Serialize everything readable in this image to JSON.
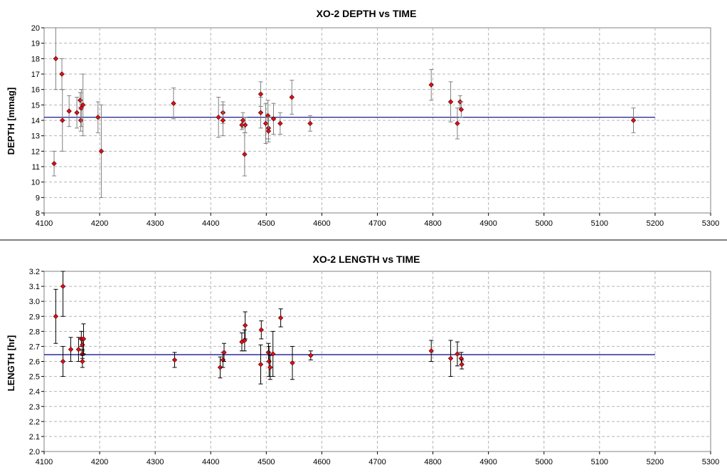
{
  "chart_data": [
    {
      "type": "scatter",
      "title": "XO-2 DEPTH vs TIME",
      "xlabel": "",
      "ylabel": "DEPTH [mmag]",
      "xlim": [
        4100,
        5300
      ],
      "ylim": [
        8,
        20
      ],
      "x_ticks": [
        4100,
        4200,
        4300,
        4400,
        4500,
        4600,
        4700,
        4800,
        4900,
        5000,
        5100,
        5200,
        5300
      ],
      "y_ticks": [
        8,
        9,
        10,
        11,
        12,
        13,
        14,
        15,
        16,
        17,
        18,
        19,
        20
      ],
      "grid": true,
      "error_bar_color": "#808080",
      "marker_color": "#e0101a",
      "reference_line": {
        "y": 14.2,
        "x_range": [
          4100,
          5200
        ],
        "color": "#000080"
      },
      "points": [
        {
          "x": 4118,
          "y": 11.2,
          "err": 0.8
        },
        {
          "x": 4121,
          "y": 18.0,
          "err": 2.0
        },
        {
          "x": 4132,
          "y": 17.0,
          "err": 1.0
        },
        {
          "x": 4133,
          "y": 14.0,
          "err": 2.0
        },
        {
          "x": 4145,
          "y": 14.6,
          "err": 1.0
        },
        {
          "x": 4159,
          "y": 14.5,
          "err": 1.0
        },
        {
          "x": 4165,
          "y": 15.3,
          "err": 0.5
        },
        {
          "x": 4166,
          "y": 14.0,
          "err": 0.7
        },
        {
          "x": 4167,
          "y": 14.8,
          "err": 1.2
        },
        {
          "x": 4170,
          "y": 15.0,
          "err": 2.0
        },
        {
          "x": 4197,
          "y": 14.2,
          "err": 1.0
        },
        {
          "x": 4203,
          "y": 12.0,
          "err": 3.0
        },
        {
          "x": 4333,
          "y": 15.1,
          "err": 1.0
        },
        {
          "x": 4414,
          "y": 14.2,
          "err": 1.3
        },
        {
          "x": 4422,
          "y": 14.5,
          "err": 0.7
        },
        {
          "x": 4422,
          "y": 14.0,
          "err": 1.0
        },
        {
          "x": 4456,
          "y": 13.7,
          "err": 0.3
        },
        {
          "x": 4458,
          "y": 14.0,
          "err": 0.5
        },
        {
          "x": 4461,
          "y": 11.8,
          "err": 1.4
        },
        {
          "x": 4462,
          "y": 13.7,
          "err": 0.5
        },
        {
          "x": 4490,
          "y": 15.7,
          "err": 0.8
        },
        {
          "x": 4490,
          "y": 14.5,
          "err": 1.0
        },
        {
          "x": 4499,
          "y": 13.8,
          "err": 1.3
        },
        {
          "x": 4503,
          "y": 14.3,
          "err": 1.0
        },
        {
          "x": 4504,
          "y": 13.5,
          "err": 0.7
        },
        {
          "x": 4504,
          "y": 13.3,
          "err": 0.7
        },
        {
          "x": 4513,
          "y": 14.1,
          "err": 1.0
        },
        {
          "x": 4525,
          "y": 13.8,
          "err": 0.7
        },
        {
          "x": 4546,
          "y": 15.5,
          "err": 1.1
        },
        {
          "x": 4579,
          "y": 13.8,
          "err": 0.5
        },
        {
          "x": 4797,
          "y": 16.3,
          "err": 1.0
        },
        {
          "x": 4832,
          "y": 15.2,
          "err": 1.3
        },
        {
          "x": 4844,
          "y": 13.8,
          "err": 1.0
        },
        {
          "x": 4849,
          "y": 15.2,
          "err": 0.4
        },
        {
          "x": 4851,
          "y": 14.7,
          "err": 0.5
        },
        {
          "x": 5161,
          "y": 14.0,
          "err": 0.8
        }
      ]
    },
    {
      "type": "scatter",
      "title": "XO-2 LENGTH vs TIME",
      "xlabel": "",
      "ylabel": "LENGTH [hr]",
      "xlim": [
        4100,
        5300
      ],
      "ylim": [
        2.0,
        3.2
      ],
      "x_ticks": [
        4100,
        4200,
        4300,
        4400,
        4500,
        4600,
        4700,
        4800,
        4900,
        5000,
        5100,
        5200,
        5300
      ],
      "y_ticks": [
        "2.0",
        "2.1",
        "2.2",
        "2.3",
        "2.4",
        "2.5",
        "2.6",
        "2.7",
        "2.8",
        "2.9",
        "3.0",
        "3.1",
        "3.2"
      ],
      "grid": true,
      "error_bar_color": "#000000",
      "marker_color": "#e0101a",
      "reference_line": {
        "y": 2.645,
        "x_range": [
          4100,
          5200
        ],
        "color": "#000080"
      },
      "points": [
        {
          "x": 4121,
          "y": 2.9,
          "err": 0.18
        },
        {
          "x": 4134,
          "y": 3.1,
          "err": 0.2
        },
        {
          "x": 4134,
          "y": 2.6,
          "err": 0.1
        },
        {
          "x": 4148,
          "y": 2.68,
          "err": 0.08
        },
        {
          "x": 4162,
          "y": 2.68,
          "err": 0.08
        },
        {
          "x": 4167,
          "y": 2.75,
          "err": 0.05
        },
        {
          "x": 4169,
          "y": 2.71,
          "err": 0.04
        },
        {
          "x": 4169,
          "y": 2.65,
          "err": 0.03
        },
        {
          "x": 4169,
          "y": 2.6,
          "err": 0.04
        },
        {
          "x": 4171,
          "y": 2.75,
          "err": 0.1
        },
        {
          "x": 4335,
          "y": 2.61,
          "err": 0.05
        },
        {
          "x": 4417,
          "y": 2.56,
          "err": 0.07
        },
        {
          "x": 4422,
          "y": 2.61,
          "err": 0.05
        },
        {
          "x": 4424,
          "y": 2.66,
          "err": 0.06
        },
        {
          "x": 4456,
          "y": 2.73,
          "err": 0.06
        },
        {
          "x": 4461,
          "y": 2.74,
          "err": 0.07
        },
        {
          "x": 4462,
          "y": 2.84,
          "err": 0.09
        },
        {
          "x": 4490,
          "y": 2.58,
          "err": 0.13
        },
        {
          "x": 4491,
          "y": 2.81,
          "err": 0.06
        },
        {
          "x": 4504,
          "y": 2.66,
          "err": 0.06
        },
        {
          "x": 4505,
          "y": 2.6,
          "err": 0.1
        },
        {
          "x": 4507,
          "y": 2.56,
          "err": 0.08
        },
        {
          "x": 4512,
          "y": 2.65,
          "err": 0.15
        },
        {
          "x": 4526,
          "y": 2.89,
          "err": 0.06
        },
        {
          "x": 4547,
          "y": 2.59,
          "err": 0.11
        },
        {
          "x": 4580,
          "y": 2.64,
          "err": 0.03
        },
        {
          "x": 4797,
          "y": 2.67,
          "err": 0.07
        },
        {
          "x": 4832,
          "y": 2.62,
          "err": 0.12
        },
        {
          "x": 4844,
          "y": 2.65,
          "err": 0.08
        },
        {
          "x": 4851,
          "y": 2.62,
          "err": 0.04
        },
        {
          "x": 4852,
          "y": 2.58,
          "err": 0.03
        }
      ]
    }
  ]
}
